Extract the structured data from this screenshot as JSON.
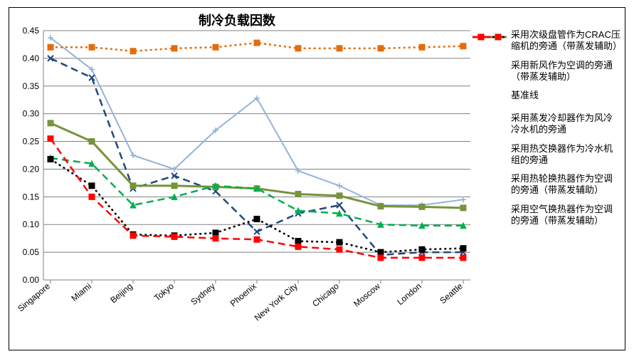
{
  "title": "制冷负载因数",
  "chart": {
    "type": "line",
    "background_color": "#ffffff",
    "border_color": "#000000",
    "grid_color": "#808080",
    "grid_width": 1,
    "axis_color": "#808080",
    "title_fontsize": 18,
    "label_fontsize": 12,
    "legend_fontsize": 13,
    "ylim": [
      0.0,
      0.45
    ],
    "ytick_step": 0.05,
    "yticks": [
      "0.00",
      "0.05",
      "0.10",
      "0.15",
      "0.20",
      "0.25",
      "0.30",
      "0.35",
      "0.40",
      "0.45"
    ],
    "categories": [
      "Singapore",
      "Miami",
      "Beijing",
      "Tokyo",
      "Sydney",
      "Phoenix",
      "New York City",
      "Chicago",
      "Moscow",
      "London",
      "Seattle"
    ],
    "legend_position": "right",
    "series": [
      {
        "key": "s1",
        "label": "采用次级盘管作为CRAC压缩机的旁通（带蒸发辅助）",
        "color": "#95b3d7",
        "marker": "plus",
        "dash": "solid",
        "line_width": 2,
        "values": [
          0.437,
          0.38,
          0.225,
          0.2,
          0.27,
          0.328,
          0.197,
          0.17,
          0.135,
          0.135,
          0.145
        ]
      },
      {
        "key": "s2",
        "label": "采用新风作为空调的旁通（带蒸发辅助）",
        "color": "#1f497d",
        "marker": "x",
        "dash": "dash",
        "line_width": 2.5,
        "values": [
          0.4,
          0.365,
          0.165,
          0.188,
          0.16,
          0.087,
          0.12,
          0.135,
          0.045,
          0.05,
          0.05
        ]
      },
      {
        "key": "s3",
        "label": "基准线",
        "color": "#e46c0a",
        "marker": "square",
        "dash": "dot",
        "line_width": 2.5,
        "values": [
          0.42,
          0.42,
          0.413,
          0.418,
          0.42,
          0.428,
          0.418,
          0.418,
          0.418,
          0.42,
          0.422
        ]
      },
      {
        "key": "s4",
        "label": "采用蒸发冷却器作为风冷冷水机的旁通",
        "color": "#77933c",
        "marker": "square",
        "dash": "solid",
        "line_width": 3,
        "values": [
          0.283,
          0.25,
          0.17,
          0.17,
          0.168,
          0.165,
          0.155,
          0.152,
          0.133,
          0.132,
          0.13
        ]
      },
      {
        "key": "s5",
        "label": "采用热交换器作为冷水机组的旁通",
        "color": "#00b050",
        "marker": "triangle",
        "dash": "dash",
        "line_width": 2.5,
        "values": [
          0.22,
          0.21,
          0.135,
          0.15,
          0.17,
          0.165,
          0.125,
          0.12,
          0.1,
          0.098,
          0.098
        ]
      },
      {
        "key": "s6",
        "label": "采用热轮换热器作为空调的旁通（带蒸发辅助）",
        "color": "#000000",
        "marker": "square",
        "dash": "dot",
        "line_width": 2.5,
        "values": [
          0.218,
          0.17,
          0.082,
          0.08,
          0.085,
          0.11,
          0.07,
          0.068,
          0.05,
          0.055,
          0.057
        ]
      },
      {
        "key": "s7",
        "label": "采用空气换热器作为空调的旁通（带蒸发辅助）",
        "color": "#ff0000",
        "marker": "square",
        "dash": "dash",
        "line_width": 2.5,
        "values": [
          0.255,
          0.15,
          0.08,
          0.078,
          0.075,
          0.073,
          0.06,
          0.055,
          0.04,
          0.04,
          0.04
        ]
      }
    ]
  }
}
